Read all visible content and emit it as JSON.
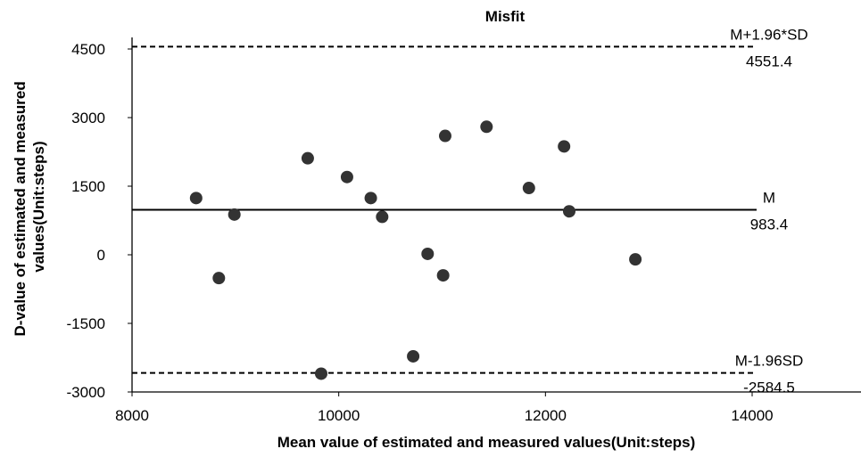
{
  "chart_data": {
    "type": "scatter",
    "title": "Misfit",
    "xlabel": "Mean value of estimated and measured values(Unit:steps)",
    "ylabel": "D-value of estimated and measured values(Unit:steps)",
    "xlim": [
      8000,
      14000
    ],
    "ylim": [
      -3000,
      4500
    ],
    "x_ticks": [
      "8000",
      "10000",
      "12000",
      "14000"
    ],
    "y_ticks": [
      "4500",
      "3000",
      "1500",
      "0",
      "-1500",
      "-3000"
    ],
    "points": [
      {
        "x": 8620,
        "y": 1240
      },
      {
        "x": 8840,
        "y": -510
      },
      {
        "x": 8990,
        "y": 880
      },
      {
        "x": 9700,
        "y": 2110
      },
      {
        "x": 9830,
        "y": -2600
      },
      {
        "x": 10080,
        "y": 1700
      },
      {
        "x": 10310,
        "y": 1240
      },
      {
        "x": 10420,
        "y": 830
      },
      {
        "x": 10720,
        "y": -2220
      },
      {
        "x": 10860,
        "y": 20
      },
      {
        "x": 11010,
        "y": -450
      },
      {
        "x": 11030,
        "y": 2600
      },
      {
        "x": 11430,
        "y": 2800
      },
      {
        "x": 11840,
        "y": 1460
      },
      {
        "x": 12180,
        "y": 2370
      },
      {
        "x": 12230,
        "y": 950
      },
      {
        "x": 12870,
        "y": -100
      }
    ],
    "reference_lines": [
      {
        "label": "M+1.96*SD",
        "value_text": "4551.4",
        "y": 4551.4,
        "style": "dashed"
      },
      {
        "label": "M",
        "value_text": "983.4",
        "y": 983.4,
        "style": "solid"
      },
      {
        "label": "M-1.96SD",
        "value_text": "-2584.5",
        "y": -2584.5,
        "style": "dashed"
      }
    ],
    "grid": false,
    "marker_color": "#333333"
  }
}
